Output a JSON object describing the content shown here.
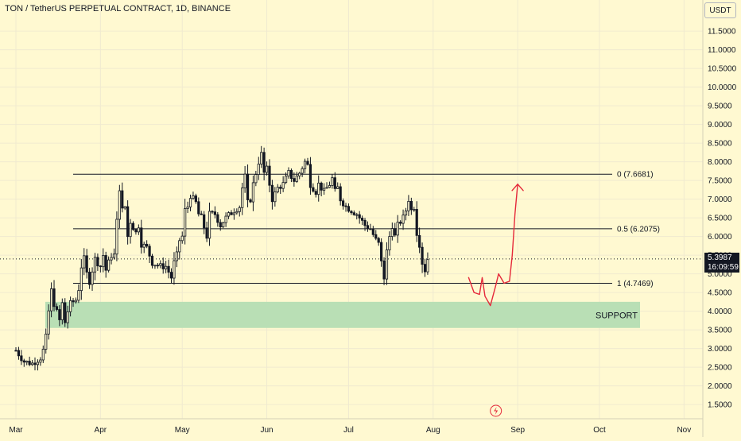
{
  "header": {
    "title": "TON / TetherUS PERPETUAL CONTRACT, 1D, BINANCE",
    "currency": "USDT"
  },
  "last_price": {
    "value": "5.3987",
    "countdown": "16:09:59"
  },
  "colors": {
    "background": "#fff9d1",
    "candle_color": "#131722",
    "support_zone": "#b9dfb5",
    "drawing": "#e5283a",
    "grid": "#f0ead0"
  },
  "chart_data": {
    "type": "candlestick",
    "title": "TON / TetherUS PERPETUAL CONTRACT, 1D, BINANCE",
    "xlabel": "",
    "ylabel": "",
    "ylim": [
      1.2,
      12.0
    ],
    "y_ticks": [
      "11.5000",
      "11.0000",
      "10.5000",
      "10.0000",
      "9.5000",
      "9.0000",
      "8.5000",
      "8.0000",
      "7.5000",
      "7.0000",
      "6.5000",
      "6.0000",
      "5.5000",
      "5.0000",
      "4.5000",
      "4.0000",
      "3.5000",
      "3.0000",
      "2.5000",
      "2.0000",
      "1.5000"
    ],
    "y_tick_values": [
      11.5,
      11.0,
      10.5,
      10.0,
      9.5,
      9.0,
      8.5,
      8.0,
      7.5,
      7.0,
      6.5,
      6.0,
      5.5,
      5.0,
      4.5,
      4.0,
      3.5,
      3.0,
      2.5,
      2.0,
      1.5
    ],
    "x_ticks": [
      "Mar",
      "Apr",
      "May",
      "Jun",
      "Jul",
      "Aug",
      "Sep",
      "Oct",
      "Nov"
    ],
    "x_tick_days": [
      0,
      31,
      61,
      92,
      122,
      153,
      184,
      214,
      245
    ],
    "price_path": [
      [
        0,
        2.95
      ],
      [
        3,
        2.65
      ],
      [
        6,
        2.6
      ],
      [
        9,
        2.75
      ],
      [
        10,
        2.95
      ],
      [
        11,
        3.3
      ],
      [
        12,
        4.0
      ],
      [
        13,
        4.55
      ],
      [
        14,
        4.2
      ],
      [
        16,
        3.75
      ],
      [
        17,
        4.2
      ],
      [
        18,
        3.7
      ],
      [
        19,
        4.0
      ],
      [
        20,
        4.2
      ],
      [
        22,
        4.3
      ],
      [
        23,
        4.6
      ],
      [
        24,
        5.2
      ],
      [
        25,
        5.4
      ],
      [
        26,
        5.0
      ],
      [
        27,
        4.8
      ],
      [
        29,
        5.4
      ],
      [
        31,
        5.2
      ],
      [
        32,
        5.5
      ],
      [
        33,
        5.1
      ],
      [
        35,
        5.5
      ],
      [
        36,
        5.5
      ],
      [
        37,
        6.4
      ],
      [
        38,
        7.3
      ],
      [
        39,
        6.7
      ],
      [
        40,
        6.8
      ],
      [
        41,
        6.0
      ],
      [
        42,
        6.4
      ],
      [
        44,
        6.1
      ],
      [
        45,
        6.3
      ],
      [
        46,
        5.8
      ],
      [
        48,
        5.7
      ],
      [
        50,
        5.3
      ],
      [
        53,
        5.2
      ],
      [
        55,
        5.2
      ],
      [
        57,
        4.9
      ],
      [
        58,
        5.3
      ],
      [
        59,
        5.5
      ],
      [
        60,
        5.9
      ],
      [
        61,
        6.0
      ],
      [
        62,
        6.7
      ],
      [
        63,
        6.8
      ],
      [
        64,
        7.1
      ],
      [
        66,
        6.9
      ],
      [
        67,
        6.6
      ],
      [
        68,
        6.5
      ],
      [
        70,
        6.0
      ],
      [
        71,
        6.6
      ],
      [
        73,
        6.6
      ],
      [
        75,
        6.3
      ],
      [
        77,
        6.5
      ],
      [
        80,
        6.7
      ],
      [
        82,
        6.8
      ],
      [
        83,
        7.3
      ],
      [
        84,
        7.6
      ],
      [
        85,
        6.9
      ],
      [
        86,
        7.0
      ],
      [
        87,
        7.4
      ],
      [
        88,
        7.7
      ],
      [
        89,
        8.0
      ],
      [
        90,
        8.2
      ],
      [
        91,
        7.7
      ],
      [
        92,
        7.8
      ],
      [
        94,
        7.0
      ],
      [
        96,
        7.3
      ],
      [
        98,
        7.4
      ],
      [
        100,
        7.7
      ],
      [
        102,
        7.5
      ],
      [
        104,
        7.7
      ],
      [
        106,
        8.0
      ],
      [
        107,
        7.9
      ],
      [
        108,
        7.4
      ],
      [
        109,
        7.3
      ],
      [
        110,
        7.2
      ],
      [
        111,
        7.4
      ],
      [
        112,
        7.3
      ],
      [
        113,
        7.2
      ],
      [
        115,
        7.4
      ],
      [
        116,
        7.55
      ],
      [
        117,
        7.2
      ],
      [
        118,
        7.3
      ],
      [
        119,
        7.0
      ],
      [
        121,
        6.8
      ],
      [
        123,
        6.7
      ],
      [
        125,
        6.6
      ],
      [
        126,
        6.5
      ],
      [
        128,
        6.3
      ],
      [
        130,
        6.2
      ],
      [
        132,
        5.9
      ],
      [
        133,
        5.8
      ],
      [
        134,
        5.3
      ],
      [
        135,
        4.9
      ],
      [
        136,
        5.6
      ],
      [
        137,
        6.0
      ],
      [
        138,
        6.3
      ],
      [
        139,
        6.0
      ],
      [
        140,
        6.3
      ],
      [
        141,
        6.4
      ],
      [
        142,
        6.5
      ],
      [
        143,
        6.7
      ],
      [
        144,
        7.0
      ],
      [
        145,
        6.7
      ],
      [
        146,
        6.8
      ],
      [
        147,
        6.1
      ],
      [
        148,
        5.8
      ],
      [
        149,
        5.3
      ],
      [
        150,
        5.1
      ],
      [
        151,
        5.4
      ]
    ],
    "levels": [
      {
        "label": "0 (7.6681)",
        "value": 7.6681
      },
      {
        "label": "0.5 (6.2075)",
        "value": 6.2075
      },
      {
        "label": "1 (4.7469)",
        "value": 4.7469
      }
    ],
    "zones": [
      {
        "label": "SUPPORT",
        "from": 3.55,
        "to": 4.25
      }
    ],
    "current_price": 5.3987,
    "projection_path": [
      [
        166,
        4.9
      ],
      [
        168,
        4.5
      ],
      [
        170,
        4.45
      ],
      [
        171,
        4.9
      ],
      [
        172,
        4.4
      ],
      [
        174,
        4.15
      ],
      [
        176,
        4.7
      ],
      [
        177,
        5.0
      ],
      [
        179,
        4.75
      ],
      [
        181,
        4.8
      ],
      [
        182,
        5.5
      ],
      [
        183,
        6.6
      ],
      [
        184,
        7.4
      ]
    ]
  }
}
